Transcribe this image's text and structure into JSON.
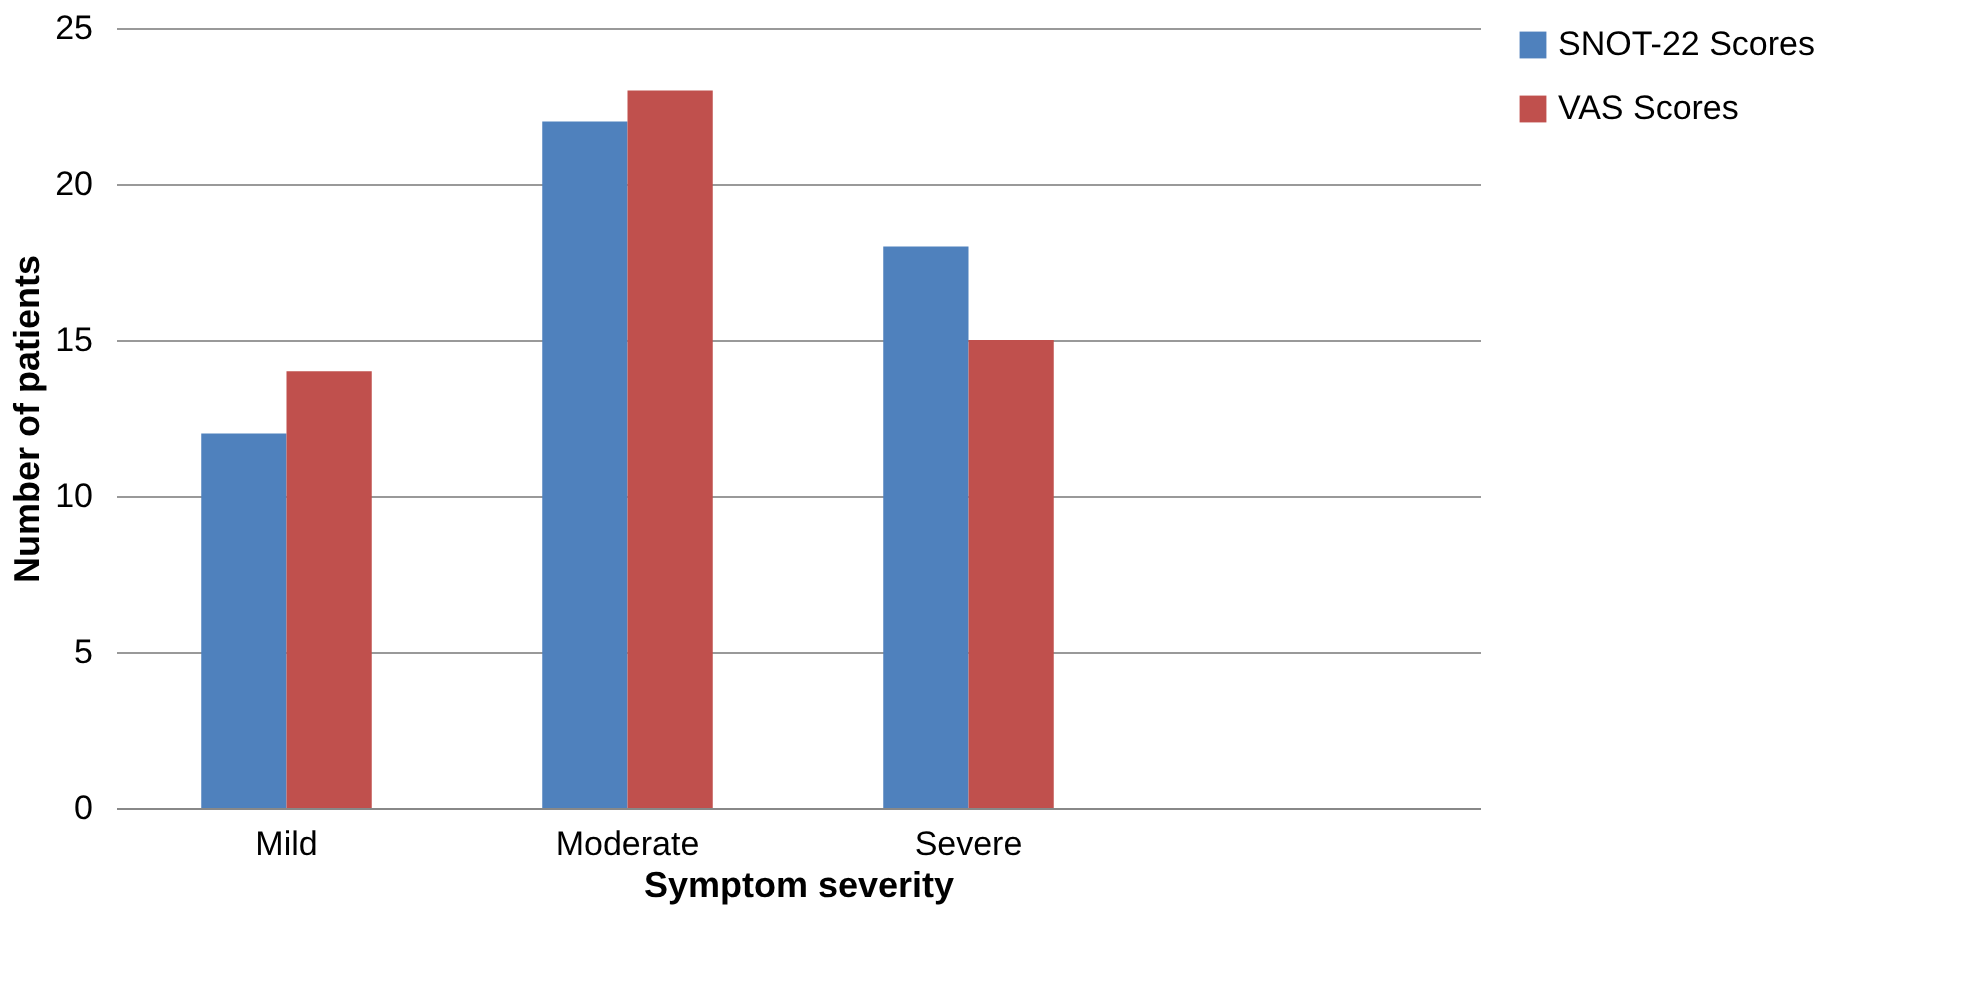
{
  "chart_data": {
    "type": "bar",
    "xlabel": "Symptom severity",
    "ylabel": "Number of patients",
    "categories": [
      "Mild",
      "Moderate",
      "Severe",
      null
    ],
    "series": [
      {
        "name": "SNOT-22 Scores",
        "color": "#4f81bd",
        "values": [
          12,
          22,
          18,
          null
        ]
      },
      {
        "name": "VAS Scores",
        "color": "#c0504d",
        "values": [
          14,
          23,
          15,
          null
        ]
      }
    ],
    "ylim": [
      0,
      25
    ],
    "yticks": [
      0,
      5,
      10,
      15,
      20,
      25
    ],
    "grid": "y",
    "legend": "right"
  }
}
